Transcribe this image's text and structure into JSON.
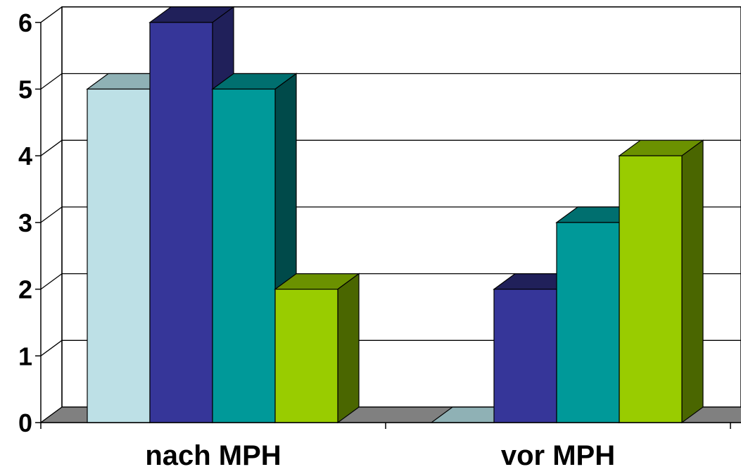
{
  "chart_data": {
    "type": "bar",
    "categories": [
      "nach MPH",
      "vor MPH"
    ],
    "series": [
      {
        "values": [
          5,
          0
        ]
      },
      {
        "values": [
          6,
          2
        ]
      },
      {
        "values": [
          5,
          3
        ]
      },
      {
        "values": [
          2,
          4
        ]
      }
    ],
    "title": "",
    "xlabel": "",
    "ylabel": "",
    "ylim": [
      0,
      6
    ],
    "yticks": [
      "0",
      "1",
      "2",
      "3",
      "4",
      "5",
      "6"
    ],
    "grid": true,
    "legend": "none",
    "style": "3d-clustered-columns"
  },
  "colors": {
    "series_front": [
      "#bde0e6",
      "#363699",
      "#009999",
      "#99cc00"
    ],
    "series_top": [
      "#8fb1b5",
      "#20205a",
      "#006f6f",
      "#6b9100"
    ],
    "series_side": [
      "#8fb1b5",
      "#20205a",
      "#004a4a",
      "#4a6600"
    ],
    "floor": "#808080",
    "wall": "#ffffff",
    "grid": "#000000"
  }
}
